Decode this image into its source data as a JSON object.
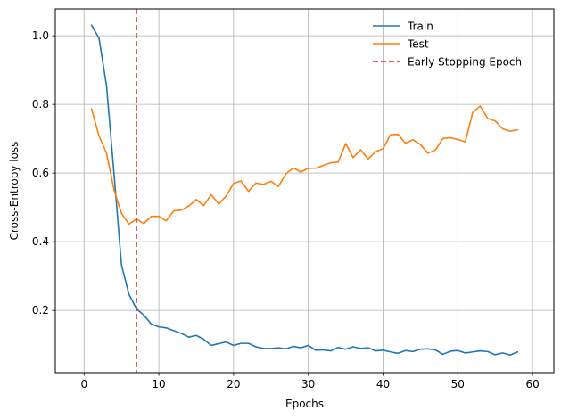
{
  "chart_data": {
    "type": "line",
    "xlabel": "Epochs",
    "ylabel": "Cross-Entropy loss",
    "xlim": [
      -3.85,
      62.85
    ],
    "ylim": [
      0.0186,
      1.0783
    ],
    "xticks": [
      0,
      10,
      20,
      30,
      40,
      50,
      60
    ],
    "yticks": [
      0.2,
      0.4,
      0.6,
      0.8,
      1.0
    ],
    "xtick_labels": [
      "0",
      "10",
      "20",
      "30",
      "40",
      "50",
      "60"
    ],
    "ytick_labels": [
      "0.2",
      "0.4",
      "0.6",
      "0.8",
      "1.0"
    ],
    "grid": true,
    "legend_position": "top-right",
    "x": [
      1,
      2,
      3,
      4,
      5,
      6,
      7,
      8,
      9,
      10,
      11,
      12,
      13,
      14,
      15,
      16,
      17,
      18,
      19,
      20,
      21,
      22,
      23,
      24,
      25,
      26,
      27,
      28,
      29,
      30,
      31,
      32,
      33,
      34,
      35,
      36,
      37,
      38,
      39,
      40,
      41,
      42,
      43,
      44,
      45,
      46,
      47,
      48,
      49,
      50,
      51,
      52,
      53,
      54,
      55,
      56,
      57,
      58
    ],
    "series": [
      {
        "name": "Train",
        "color": "#1f77b4",
        "values": [
          1.031,
          0.993,
          0.855,
          0.6,
          0.333,
          0.247,
          0.205,
          0.186,
          0.16,
          0.152,
          0.149,
          0.141,
          0.133,
          0.122,
          0.127,
          0.116,
          0.098,
          0.103,
          0.108,
          0.098,
          0.104,
          0.104,
          0.094,
          0.089,
          0.089,
          0.091,
          0.088,
          0.095,
          0.091,
          0.098,
          0.084,
          0.085,
          0.082,
          0.092,
          0.087,
          0.094,
          0.089,
          0.091,
          0.082,
          0.084,
          0.079,
          0.075,
          0.083,
          0.08,
          0.087,
          0.088,
          0.085,
          0.072,
          0.081,
          0.083,
          0.076,
          0.079,
          0.082,
          0.08,
          0.071,
          0.076,
          0.07,
          0.079
        ]
      },
      {
        "name": "Test",
        "color": "#ff7f0e",
        "values": [
          0.787,
          0.708,
          0.658,
          0.552,
          0.483,
          0.451,
          0.466,
          0.453,
          0.474,
          0.474,
          0.461,
          0.49,
          0.492,
          0.504,
          0.523,
          0.505,
          0.537,
          0.51,
          0.533,
          0.57,
          0.577,
          0.547,
          0.571,
          0.567,
          0.576,
          0.561,
          0.598,
          0.615,
          0.603,
          0.614,
          0.614,
          0.622,
          0.63,
          0.632,
          0.686,
          0.645,
          0.668,
          0.641,
          0.662,
          0.671,
          0.712,
          0.713,
          0.687,
          0.697,
          0.683,
          0.658,
          0.667,
          0.701,
          0.703,
          0.698,
          0.691,
          0.777,
          0.795,
          0.759,
          0.752,
          0.729,
          0.722,
          0.726
        ]
      }
    ],
    "vline": {
      "name": "Early Stopping Epoch",
      "x": 7,
      "color": "#d62728",
      "style": "dashed"
    }
  }
}
